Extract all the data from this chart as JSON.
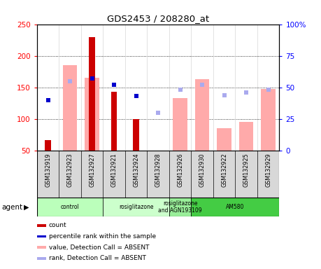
{
  "title": "GDS2453 / 208280_at",
  "samples": [
    "GSM132919",
    "GSM132923",
    "GSM132927",
    "GSM132921",
    "GSM132924",
    "GSM132928",
    "GSM132926",
    "GSM132930",
    "GSM132922",
    "GSM132925",
    "GSM132929"
  ],
  "count_values": [
    67,
    null,
    230,
    143,
    100,
    null,
    null,
    null,
    null,
    null,
    null
  ],
  "percentile_rank_right": [
    40,
    null,
    57,
    52,
    43,
    null,
    null,
    null,
    null,
    null,
    null
  ],
  "absent_value": [
    null,
    185,
    165,
    null,
    null,
    null,
    133,
    163,
    85,
    95,
    148
  ],
  "absent_rank_right": [
    null,
    55,
    null,
    null,
    null,
    30,
    48,
    52,
    44,
    46,
    48
  ],
  "ylim_left": [
    50,
    250
  ],
  "ylim_right": [
    0,
    100
  ],
  "yticks_left": [
    50,
    100,
    150,
    200,
    250
  ],
  "yticks_right": [
    0,
    25,
    50,
    75,
    100
  ],
  "agent_groups": [
    {
      "label": "control",
      "start": 0,
      "end": 2,
      "color": "#bbffbb"
    },
    {
      "label": "rosiglitazone",
      "start": 3,
      "end": 5,
      "color": "#ccffcc"
    },
    {
      "label": "rosiglitazone\nand AGN193109",
      "start": 6,
      "end": 6,
      "color": "#99ee99"
    },
    {
      "label": "AM580",
      "start": 7,
      "end": 10,
      "color": "#44cc44"
    }
  ],
  "count_color": "#cc0000",
  "rank_color": "#0000cc",
  "absent_value_color": "#ffaaaa",
  "absent_rank_color": "#aaaaee"
}
